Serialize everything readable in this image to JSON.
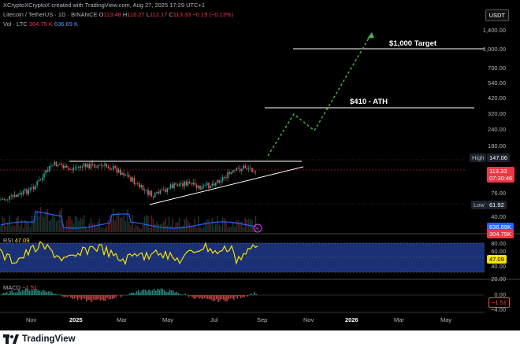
{
  "header": {
    "attribution": "XCryptoXCryptoX created with TradingView.com, Aug 27, 2025 17:29 UTC+1",
    "symbol": "Litecoin / TetherUS · 1D · BINANCE",
    "o_label": "O",
    "o_value": "113.48",
    "h_label": "H",
    "h_value": "116.27",
    "l_label": "L",
    "l_value": "112.17",
    "c_label": "C",
    "c_value": "113.33",
    "change": "−0.15 (−0.13%)",
    "vol_label": "Vol · LTC",
    "vol_value1": "304.75 K",
    "vol_value2": "636.69 K"
  },
  "currency": "USDT",
  "price_axis": [
    "1,400.00",
    "1,000.00",
    "700.00",
    "540.00",
    "420.00",
    "320.00",
    "240.00",
    "180.00",
    "76.00",
    "40.00"
  ],
  "price_tags": {
    "high_label": "High",
    "high_value": "147.06",
    "current_value": "113.33",
    "countdown": "07:30:46",
    "low_label": "Low",
    "low_value": "61.92",
    "vol_tag1": "636.69K",
    "vol_tag2": "304.75K"
  },
  "annotations": {
    "target": "$1,000 Target",
    "ath": "$410 - ATH"
  },
  "rsi": {
    "label": "RSI",
    "value": "47.09",
    "axis": [
      "80.00",
      "60.00",
      "40.00",
      "20.00"
    ]
  },
  "macd": {
    "label": "MACD",
    "value": "−1.51",
    "axis": [
      "0.00",
      "−4.00"
    ]
  },
  "time_axis": [
    "Nov",
    "2025",
    "Mar",
    "May",
    "Jul",
    "Sep",
    "Nov",
    "2026",
    "Mar",
    "May"
  ],
  "brand": {
    "name": "TradingView"
  },
  "colors": {
    "up": "#26a69a",
    "down": "#ef5350",
    "rsi": "#f7e300",
    "rsi_band": "#1e3a8a",
    "volume_ma": "#2962ff",
    "projection": "#4caf50"
  }
}
